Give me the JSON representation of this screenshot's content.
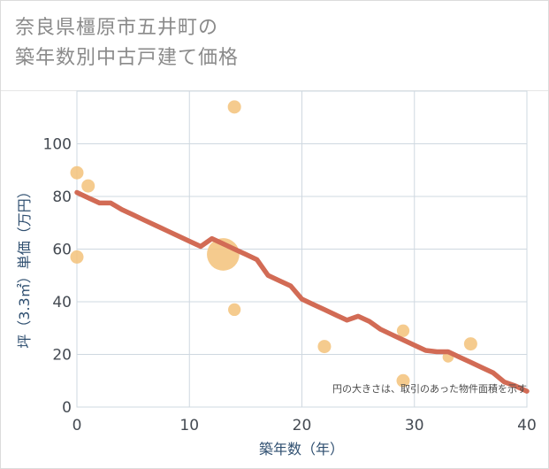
{
  "title_line1": "奈良県橿原市五井町の",
  "title_line2": "築年数別中古戸建て価格",
  "colors": {
    "bubble": "#f3c27a",
    "line": "#d26b55",
    "grid": "#cfd8e0",
    "axis_text": "#444a52"
  },
  "chart_data": {
    "type": "scatter",
    "title": "奈良県橿原市五井町の築年数別中古戸建て価格",
    "xlabel": "築年数（年）",
    "ylabel": "坪（3.3㎡）単価（万円）",
    "xlim": [
      0,
      40
    ],
    "ylim": [
      0,
      120
    ],
    "xticks": [
      0,
      10,
      20,
      30,
      40
    ],
    "yticks": [
      0,
      20,
      40,
      60,
      80,
      100
    ],
    "grid": true,
    "note": "円の大きさは、取引のあった物件面積を示す",
    "points": [
      {
        "x": 0,
        "y": 89,
        "size": 1
      },
      {
        "x": 0,
        "y": 57,
        "size": 1
      },
      {
        "x": 1,
        "y": 84,
        "size": 1
      },
      {
        "x": 13,
        "y": 58,
        "size": 6
      },
      {
        "x": 14,
        "y": 114,
        "size": 1
      },
      {
        "x": 14,
        "y": 37,
        "size": 0.9
      },
      {
        "x": 22,
        "y": 23,
        "size": 1
      },
      {
        "x": 29,
        "y": 29,
        "size": 0.9
      },
      {
        "x": 29,
        "y": 10,
        "size": 1
      },
      {
        "x": 33,
        "y": 19,
        "size": 0.7
      },
      {
        "x": 35,
        "y": 24,
        "size": 1
      }
    ],
    "trend": {
      "x": [
        0,
        1,
        2,
        3,
        4,
        5,
        6,
        7,
        8,
        9,
        10,
        11,
        12,
        13,
        14,
        15,
        16,
        17,
        18,
        19,
        20,
        21,
        22,
        23,
        24,
        25,
        26,
        27,
        28,
        29,
        30,
        31,
        32,
        33,
        34,
        35,
        36,
        37,
        38,
        39,
        40
      ],
      "y": [
        81.5,
        79.5,
        77.5,
        77.5,
        75,
        73,
        71,
        69,
        67,
        65,
        63,
        61,
        64,
        62,
        60,
        58,
        56,
        50,
        48,
        46,
        41,
        39,
        37,
        35,
        33,
        34.5,
        32.5,
        29.5,
        27.5,
        25.5,
        23.5,
        21.5,
        21,
        21,
        19,
        17,
        15,
        13,
        9.5,
        8,
        6
      ]
    }
  }
}
